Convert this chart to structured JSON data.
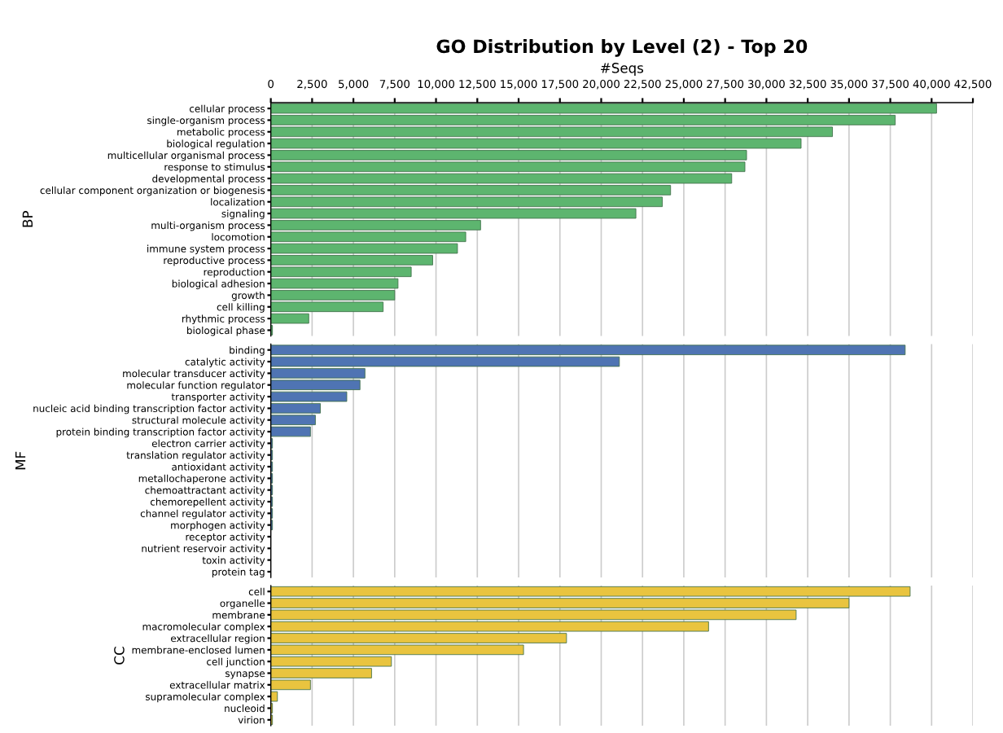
{
  "chart_data": [
    {
      "type": "bar",
      "orientation": "horizontal",
      "title": "GO Distribution by Level (2) - Top 20",
      "xlabel": "#Seqs",
      "ylabel": "BP",
      "color": "#5db56f",
      "grid": "x",
      "xlim": [
        0,
        42500
      ],
      "xticks": [
        0,
        {
          "value": 2500,
          "label": "2,500"
        },
        {
          "value": 5000,
          "label": "5,000"
        },
        {
          "value": 7500,
          "label": "7,500"
        },
        {
          "value": 10000,
          "label": "10,000"
        },
        {
          "value": 12500,
          "label": "12,500"
        },
        {
          "value": 15000,
          "label": "15,000"
        },
        {
          "value": 17500,
          "label": "17,500"
        },
        {
          "value": 20000,
          "label": "20,000"
        },
        {
          "value": 22500,
          "label": "22,500"
        },
        {
          "value": 25000,
          "label": "25,000"
        },
        {
          "value": 27500,
          "label": "27,500"
        },
        {
          "value": 30000,
          "label": "30,000"
        },
        {
          "value": 32500,
          "label": "32,500"
        },
        {
          "value": 35000,
          "label": "35,000"
        },
        {
          "value": 37500,
          "label": "37,500"
        },
        {
          "value": 40000,
          "label": "40,000"
        },
        {
          "value": 42500,
          "label": "42,500"
        }
      ],
      "categories": [
        "cellular process",
        "single-organism process",
        "metabolic process",
        "biological regulation",
        "multicellular organismal process",
        "response to stimulus",
        "developmental process",
        "cellular component organization or biogenesis",
        "localization",
        "signaling",
        "multi-organism process",
        "locomotion",
        "immune system process",
        "reproductive process",
        "reproduction",
        "biological adhesion",
        "growth",
        "cell killing",
        "rhythmic process",
        "biological phase"
      ],
      "values": [
        40300,
        37800,
        34000,
        32100,
        28800,
        28700,
        27900,
        24200,
        23700,
        22100,
        12700,
        11800,
        11300,
        9800,
        8500,
        7700,
        7500,
        6800,
        2300,
        100
      ]
    },
    {
      "type": "bar",
      "orientation": "horizontal",
      "ylabel": "MF",
      "color": "#4f74b3",
      "grid": "x",
      "xlim": [
        0,
        42500
      ],
      "tick_labels": "y",
      "categories": [
        "binding",
        "catalytic activity",
        "molecular transducer activity",
        "molecular function regulator",
        "transporter activity",
        "nucleic acid binding transcription factor activity",
        "structural molecule activity",
        "protein binding transcription factor activity",
        "electron carrier activity",
        "translation regulator activity",
        "antioxidant activity",
        "metallochaperone activity",
        "chemoattractant activity",
        "chemorepellent activity",
        "channel regulator activity",
        "morphogen activity",
        "receptor activity",
        "nutrient reservoir activity",
        "toxin activity",
        "protein tag"
      ],
      "values": [
        38400,
        21100,
        5700,
        5400,
        4600,
        3000,
        2700,
        2400,
        100,
        100,
        100,
        100,
        100,
        100,
        100,
        100,
        null,
        null,
        null,
        null
      ]
    },
    {
      "type": "bar",
      "orientation": "horizontal",
      "ylabel": "CC",
      "color": "#e9c43f",
      "grid": "x",
      "xlim": [
        0,
        42500
      ],
      "tick_labels": "y",
      "categories": [
        "cell",
        "organelle",
        "membrane",
        "macromolecular complex",
        "extracellular region",
        "membrane-enclosed lumen",
        "cell junction",
        "synapse",
        "extracellular matrix",
        "supramolecular complex",
        "nucleoid",
        "virion"
      ],
      "values": [
        38700,
        35000,
        31800,
        26500,
        17900,
        15300,
        7300,
        6100,
        2400,
        400,
        100,
        100
      ]
    }
  ]
}
